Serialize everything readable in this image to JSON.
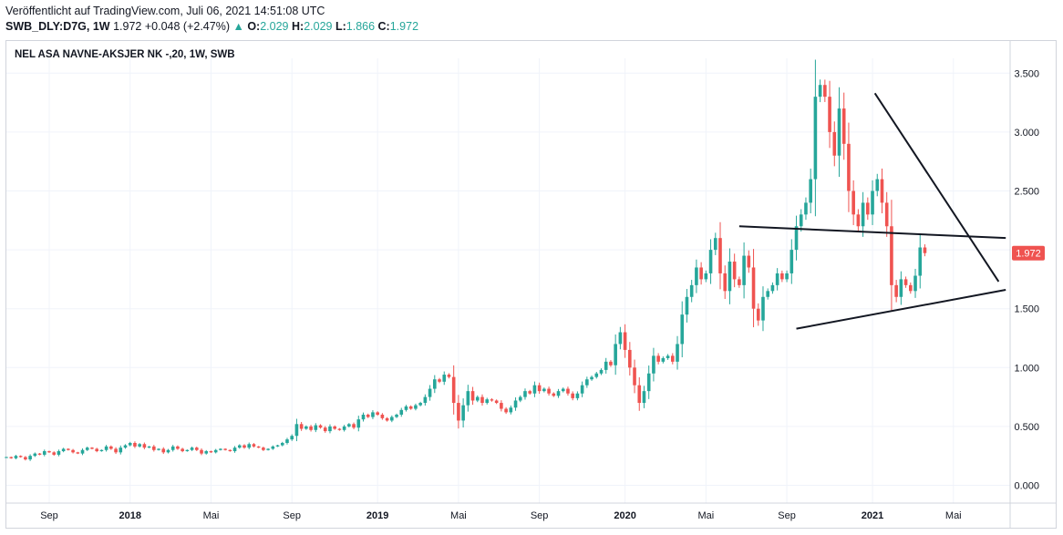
{
  "header": {
    "published": "Veröffentlicht auf TradingView.com, Juli 06, 2021 14:51:08 UTC",
    "symbol": "SWB_DLY:D7G, 1W",
    "price": "1.972",
    "change_arrow": "▲",
    "change": "+0.048 (+2.47%)",
    "o_label": "O:",
    "o_value": "2.029",
    "h_label": "H:",
    "h_value": "2.029",
    "l_label": "L:",
    "l_value": "1.866",
    "c_label": "C:",
    "c_value": "1.972"
  },
  "colors": {
    "up": "#26a69a",
    "down": "#ef5350",
    "trendline": "#131722",
    "price_badge": "#ef5350"
  },
  "chart_data": {
    "type": "candlestick",
    "title": "NEL ASA NAVNE-AKSJER NK -,20, 1W, SWB",
    "ylim": [
      -0.1,
      3.65
    ],
    "y_ticks": [
      0.0,
      0.5,
      1.0,
      1.5,
      2.0,
      2.5,
      3.0,
      3.5
    ],
    "y_tick_labels": [
      "0.000",
      "0.500",
      "1.000",
      "1.500",
      "2.000",
      "2.500",
      "3.000",
      "3.500"
    ],
    "x_ticks": [
      {
        "label": "Sep",
        "index": 9,
        "bold": false
      },
      {
        "label": "2018",
        "index": 26,
        "bold": true
      },
      {
        "label": "Mai",
        "index": 43,
        "bold": false
      },
      {
        "label": "Sep",
        "index": 60,
        "bold": false
      },
      {
        "label": "2019",
        "index": 78,
        "bold": true
      },
      {
        "label": "Mai",
        "index": 95,
        "bold": false
      },
      {
        "label": "Sep",
        "index": 112,
        "bold": false
      },
      {
        "label": "2020",
        "index": 130,
        "bold": true
      },
      {
        "label": "Mai",
        "index": 147,
        "bold": false
      },
      {
        "label": "Sep",
        "index": 164,
        "bold": false
      },
      {
        "label": "2021",
        "index": 182,
        "bold": true
      },
      {
        "label": "Mai",
        "index": 199,
        "bold": false
      }
    ],
    "last_price_label": "1.972",
    "last_price": 1.972,
    "closes": [
      0.24,
      0.23,
      0.25,
      0.24,
      0.22,
      0.25,
      0.27,
      0.26,
      0.29,
      0.28,
      0.26,
      0.29,
      0.31,
      0.3,
      0.28,
      0.27,
      0.3,
      0.32,
      0.31,
      0.29,
      0.3,
      0.33,
      0.31,
      0.28,
      0.32,
      0.34,
      0.36,
      0.33,
      0.35,
      0.32,
      0.33,
      0.3,
      0.31,
      0.28,
      0.3,
      0.33,
      0.31,
      0.29,
      0.3,
      0.32,
      0.3,
      0.27,
      0.29,
      0.28,
      0.3,
      0.31,
      0.3,
      0.29,
      0.32,
      0.34,
      0.32,
      0.35,
      0.33,
      0.32,
      0.3,
      0.31,
      0.33,
      0.34,
      0.36,
      0.39,
      0.42,
      0.52,
      0.48,
      0.5,
      0.47,
      0.51,
      0.49,
      0.46,
      0.5,
      0.48,
      0.47,
      0.5,
      0.52,
      0.49,
      0.56,
      0.6,
      0.58,
      0.62,
      0.6,
      0.57,
      0.55,
      0.58,
      0.6,
      0.64,
      0.67,
      0.65,
      0.68,
      0.7,
      0.75,
      0.82,
      0.9,
      0.88,
      0.94,
      0.92,
      0.7,
      0.55,
      0.68,
      0.8,
      0.72,
      0.75,
      0.7,
      0.73,
      0.72,
      0.7,
      0.65,
      0.62,
      0.66,
      0.72,
      0.75,
      0.8,
      0.78,
      0.85,
      0.8,
      0.82,
      0.78,
      0.76,
      0.8,
      0.82,
      0.78,
      0.74,
      0.78,
      0.85,
      0.9,
      0.92,
      0.95,
      0.98,
      1.05,
      1.02,
      1.2,
      1.3,
      1.15,
      1.0,
      0.85,
      0.7,
      0.8,
      0.95,
      1.1,
      1.05,
      1.08,
      1.1,
      1.05,
      1.2,
      1.45,
      1.6,
      1.7,
      1.85,
      1.75,
      1.8,
      2.0,
      2.1,
      1.8,
      1.65,
      1.9,
      1.75,
      1.7,
      1.95,
      1.85,
      1.5,
      1.4,
      1.6,
      1.65,
      1.7,
      1.8,
      1.75,
      1.8,
      2.0,
      2.2,
      2.3,
      2.4,
      2.6,
      3.3,
      3.4,
      3.3,
      3.0,
      2.8,
      3.2,
      2.9,
      2.5,
      2.3,
      2.2,
      2.4,
      2.3,
      2.5,
      2.6,
      2.4,
      2.2,
      1.7,
      1.6,
      1.75,
      1.7,
      1.65,
      1.78,
      2.02,
      1.972
    ]
  }
}
